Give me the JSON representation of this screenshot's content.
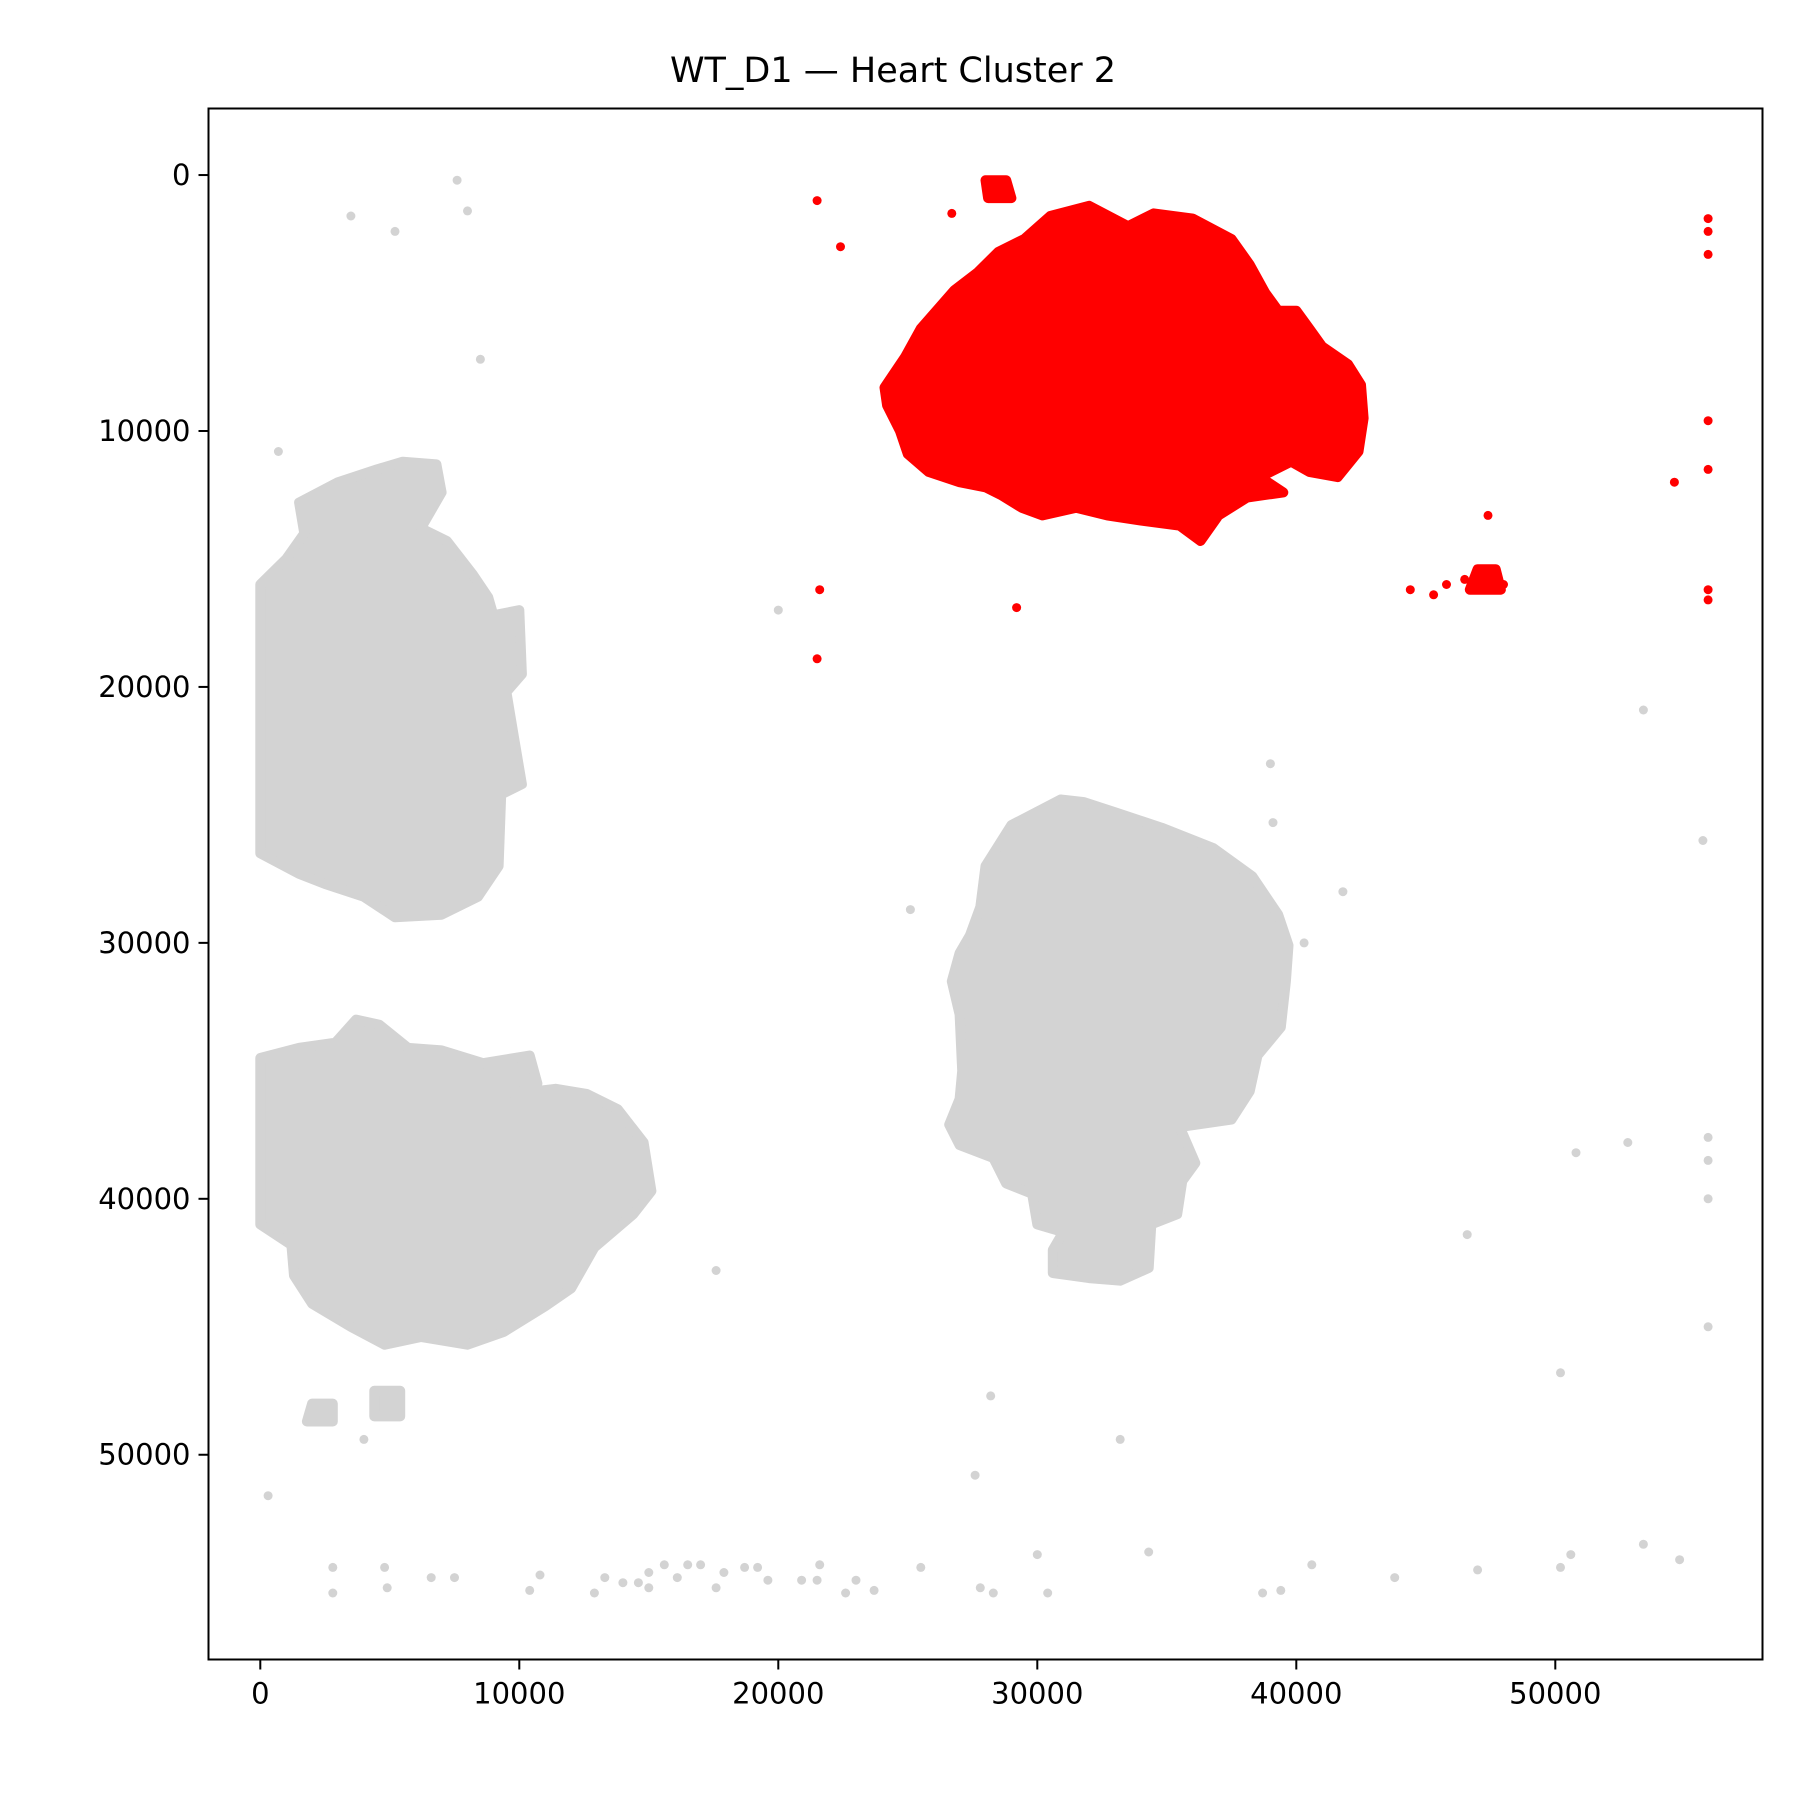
{
  "chart_data": {
    "type": "scatter",
    "title": "WT_D1 — Heart Cluster 2",
    "xlabel": "",
    "ylabel": "",
    "xlim": [
      -2000,
      58000
    ],
    "ylim": [
      58000,
      -2600
    ],
    "y_inverted": true,
    "grid": false,
    "xticks": [
      0,
      10000,
      20000,
      30000,
      40000,
      50000
    ],
    "yticks": [
      0,
      10000,
      20000,
      30000,
      40000,
      50000
    ],
    "xtick_labels": [
      "0",
      "10000",
      "20000",
      "30000",
      "40000",
      "50000"
    ],
    "ytick_labels": [
      "0",
      "10000",
      "20000",
      "30000",
      "40000",
      "50000"
    ],
    "series": [
      {
        "role": "background",
        "color": "#d3d3d3",
        "regions": [
          {
            "outline": [
              [
                5500,
                11200
              ],
              [
                6800,
                11300
              ],
              [
                7000,
                12400
              ],
              [
                6200,
                13800
              ],
              [
                7200,
                14300
              ],
              [
                8200,
                15600
              ],
              [
                8800,
                16500
              ],
              [
                9000,
                17200
              ],
              [
                10000,
                17000
              ],
              [
                10100,
                19500
              ],
              [
                9500,
                20200
              ],
              [
                9800,
                22000
              ],
              [
                10100,
                23800
              ],
              [
                9300,
                24200
              ],
              [
                9200,
                27000
              ],
              [
                8400,
                28200
              ],
              [
                7000,
                28900
              ],
              [
                5200,
                29000
              ],
              [
                4000,
                28200
              ],
              [
                2500,
                27700
              ],
              [
                1500,
                27300
              ],
              [
                0,
                26500
              ],
              [
                0,
                16000
              ],
              [
                1000,
                15000
              ],
              [
                1700,
                14000
              ],
              [
                1500,
                12800
              ],
              [
                3000,
                12000
              ],
              [
                4500,
                11500
              ]
            ]
          },
          {
            "outline": [
              [
                3700,
                33000
              ],
              [
                4600,
                33200
              ],
              [
                5700,
                34100
              ],
              [
                7000,
                34200
              ],
              [
                8600,
                34700
              ],
              [
                10400,
                34400
              ],
              [
                10700,
                35500
              ],
              [
                9800,
                35900
              ],
              [
                11400,
                35700
              ],
              [
                12600,
                35900
              ],
              [
                13800,
                36500
              ],
              [
                14800,
                37800
              ],
              [
                15100,
                39700
              ],
              [
                14400,
                40600
              ],
              [
                12900,
                41900
              ],
              [
                12000,
                43500
              ],
              [
                11000,
                44200
              ],
              [
                9400,
                45200
              ],
              [
                8000,
                45700
              ],
              [
                6200,
                45400
              ],
              [
                4800,
                45700
              ],
              [
                3500,
                45000
              ],
              [
                2000,
                44100
              ],
              [
                1300,
                43000
              ],
              [
                1200,
                41800
              ],
              [
                0,
                41000
              ],
              [
                0,
                34500
              ],
              [
                1500,
                34100
              ],
              [
                2900,
                33900
              ]
            ]
          },
          {
            "outline": [
              [
                30900,
                24400
              ],
              [
                31800,
                24500
              ],
              [
                33000,
                24900
              ],
              [
                34800,
                25500
              ],
              [
                36800,
                26300
              ],
              [
                38300,
                27400
              ],
              [
                39300,
                28900
              ],
              [
                39700,
                30100
              ],
              [
                39600,
                31500
              ],
              [
                39400,
                33300
              ],
              [
                38500,
                34400
              ],
              [
                38200,
                35800
              ],
              [
                37500,
                36900
              ],
              [
                35500,
                37200
              ],
              [
                36100,
                38600
              ],
              [
                35600,
                39300
              ],
              [
                35400,
                40600
              ],
              [
                34400,
                41000
              ],
              [
                34300,
                42700
              ],
              [
                33200,
                43200
              ],
              [
                32000,
                43100
              ],
              [
                30600,
                42900
              ],
              [
                30600,
                42000
              ],
              [
                31000,
                41300
              ],
              [
                30000,
                41000
              ],
              [
                29800,
                39800
              ],
              [
                28800,
                39400
              ],
              [
                28300,
                38400
              ],
              [
                27000,
                37900
              ],
              [
                26600,
                37100
              ],
              [
                27000,
                36100
              ],
              [
                27100,
                35000
              ],
              [
                27000,
                32800
              ],
              [
                26700,
                31500
              ],
              [
                27000,
                30400
              ],
              [
                27400,
                29700
              ],
              [
                27800,
                28600
              ],
              [
                28000,
                27000
              ],
              [
                29000,
                25400
              ]
            ]
          },
          {
            "outline": [
              [
                2000,
                48000
              ],
              [
                2800,
                48000
              ],
              [
                2800,
                48700
              ],
              [
                1800,
                48700
              ]
            ]
          },
          {
            "outline": [
              [
                4400,
                47500
              ],
              [
                5400,
                47500
              ],
              [
                5400,
                48500
              ],
              [
                4400,
                48500
              ]
            ]
          }
        ],
        "points": [
          [
            7600,
            200
          ],
          [
            8000,
            1400
          ],
          [
            3500,
            1600
          ],
          [
            5200,
            2200
          ],
          [
            8500,
            7200
          ],
          [
            700,
            10800
          ],
          [
            20000,
            17000
          ],
          [
            39000,
            23000
          ],
          [
            39100,
            25300
          ],
          [
            41800,
            28000
          ],
          [
            40300,
            30000
          ],
          [
            25100,
            28700
          ],
          [
            55700,
            26000
          ],
          [
            53400,
            20900
          ],
          [
            17600,
            42800
          ],
          [
            50800,
            38200
          ],
          [
            52800,
            37800
          ],
          [
            55900,
            37600
          ],
          [
            55900,
            38500
          ],
          [
            55900,
            40000
          ],
          [
            46600,
            41400
          ],
          [
            55900,
            45000
          ],
          [
            50200,
            46800
          ],
          [
            28200,
            47700
          ],
          [
            33200,
            49400
          ],
          [
            27600,
            50800
          ],
          [
            300,
            51600
          ],
          [
            4000,
            49400
          ],
          [
            2800,
            54400
          ],
          [
            4800,
            54400
          ],
          [
            6600,
            54800
          ],
          [
            7500,
            54800
          ],
          [
            2800,
            55400
          ],
          [
            4900,
            55200
          ],
          [
            10400,
            55300
          ],
          [
            10800,
            54700
          ],
          [
            12900,
            55400
          ],
          [
            13300,
            54800
          ],
          [
            14000,
            55000
          ],
          [
            14600,
            55000
          ],
          [
            15000,
            54600
          ],
          [
            15600,
            54300
          ],
          [
            15000,
            55200
          ],
          [
            16100,
            54800
          ],
          [
            16500,
            54300
          ],
          [
            17000,
            54300
          ],
          [
            17600,
            55200
          ],
          [
            17900,
            54600
          ],
          [
            18700,
            54400
          ],
          [
            19200,
            54400
          ],
          [
            19600,
            54900
          ],
          [
            20900,
            54900
          ],
          [
            21500,
            54900
          ],
          [
            21600,
            54300
          ],
          [
            22600,
            55400
          ],
          [
            23000,
            54900
          ],
          [
            23700,
            55300
          ],
          [
            25500,
            54400
          ],
          [
            27800,
            55200
          ],
          [
            28300,
            55400
          ],
          [
            30000,
            53900
          ],
          [
            30400,
            55400
          ],
          [
            34300,
            53800
          ],
          [
            38700,
            55400
          ],
          [
            39400,
            55300
          ],
          [
            40600,
            54300
          ],
          [
            43800,
            54800
          ],
          [
            47000,
            54500
          ],
          [
            50200,
            54400
          ],
          [
            50600,
            53900
          ],
          [
            53400,
            53500
          ],
          [
            54800,
            54100
          ]
        ]
      },
      {
        "role": "highlighted",
        "color": "#ff0000",
        "regions": [
          {
            "outline": [
              [
                29500,
                2500
              ],
              [
                30500,
                1600
              ],
              [
                32000,
                1200
              ],
              [
                33500,
                2000
              ],
              [
                34500,
                1500
              ],
              [
                36000,
                1700
              ],
              [
                37500,
                2500
              ],
              [
                38200,
                3500
              ],
              [
                38800,
                4600
              ],
              [
                39300,
                5300
              ],
              [
                40000,
                5300
              ],
              [
                40500,
                6000
              ],
              [
                41000,
                6700
              ],
              [
                42000,
                7400
              ],
              [
                42500,
                8200
              ],
              [
                42600,
                9500
              ],
              [
                42400,
                10800
              ],
              [
                41600,
                11800
              ],
              [
                40500,
                11600
              ],
              [
                39800,
                11200
              ],
              [
                38600,
                11800
              ],
              [
                39500,
                12400
              ],
              [
                38100,
                12600
              ],
              [
                37000,
                13300
              ],
              [
                36300,
                14300
              ],
              [
                35500,
                13700
              ],
              [
                34000,
                13500
              ],
              [
                32700,
                13300
              ],
              [
                31500,
                13000
              ],
              [
                30200,
                13300
              ],
              [
                29400,
                13000
              ],
              [
                28600,
                12500
              ],
              [
                28000,
                12200
              ],
              [
                27000,
                12000
              ],
              [
                25800,
                11600
              ],
              [
                25000,
                10900
              ],
              [
                24700,
                10000
              ],
              [
                24200,
                9000
              ],
              [
                24100,
                8300
              ],
              [
                24900,
                7100
              ],
              [
                25500,
                6000
              ],
              [
                26800,
                4500
              ],
              [
                27700,
                3800
              ],
              [
                28500,
                3000
              ]
            ]
          },
          {
            "outline": [
              [
                36600,
                10100
              ],
              [
                35400,
                10700
              ],
              [
                34300,
                11000
              ],
              [
                33900,
                10700
              ],
              [
                35300,
                10000
              ],
              [
                36600,
                9400
              ]
            ]
          },
          {
            "outline": [
              [
                28000,
                200
              ],
              [
                28800,
                200
              ],
              [
                29000,
                900
              ],
              [
                28100,
                900
              ]
            ]
          },
          {
            "outline": [
              [
                47000,
                15400
              ],
              [
                47700,
                15400
              ],
              [
                47900,
                16200
              ],
              [
                46700,
                16200
              ]
            ]
          }
        ],
        "points": [
          [
            21500,
            1000
          ],
          [
            22400,
            2800
          ],
          [
            26700,
            1500
          ],
          [
            21600,
            16200
          ],
          [
            21500,
            18900
          ],
          [
            29200,
            16900
          ],
          [
            44400,
            16200
          ],
          [
            45300,
            16400
          ],
          [
            45800,
            16000
          ],
          [
            46500,
            15800
          ],
          [
            47400,
            13300
          ],
          [
            48000,
            16000
          ],
          [
            55900,
            1700
          ],
          [
            55900,
            2200
          ],
          [
            55900,
            3100
          ],
          [
            55900,
            9600
          ],
          [
            55900,
            11500
          ],
          [
            54600,
            12000
          ],
          [
            55900,
            16200
          ],
          [
            55900,
            16600
          ]
        ]
      }
    ]
  }
}
